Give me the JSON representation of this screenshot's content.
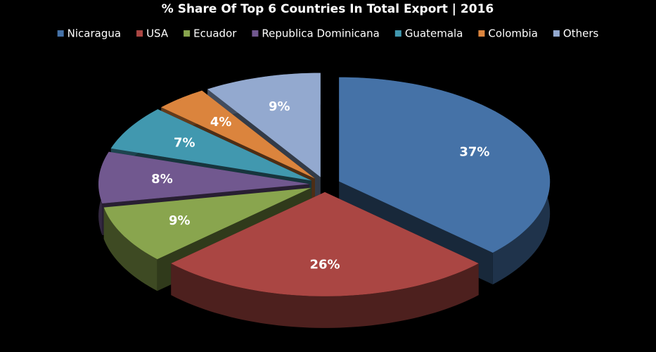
{
  "chart_data": {
    "type": "pie3d",
    "title": "% Share Of Top 6 Countries In Total Export | 2016",
    "categories": [
      "Nicaragua",
      "USA",
      "Ecuador",
      "Republica Dominicana",
      "Guatemala",
      "Colombia",
      "Others"
    ],
    "values": [
      37,
      26,
      9,
      8,
      7,
      4,
      9
    ],
    "value_labels": [
      "37%",
      "26%",
      "9%",
      "8%",
      "7%",
      "4%",
      "9%"
    ],
    "colors": [
      "#4572a7",
      "#aa4643",
      "#89a54e",
      "#71588f",
      "#4198af",
      "#db843d",
      "#93a9cf"
    ],
    "legend": "top"
  }
}
